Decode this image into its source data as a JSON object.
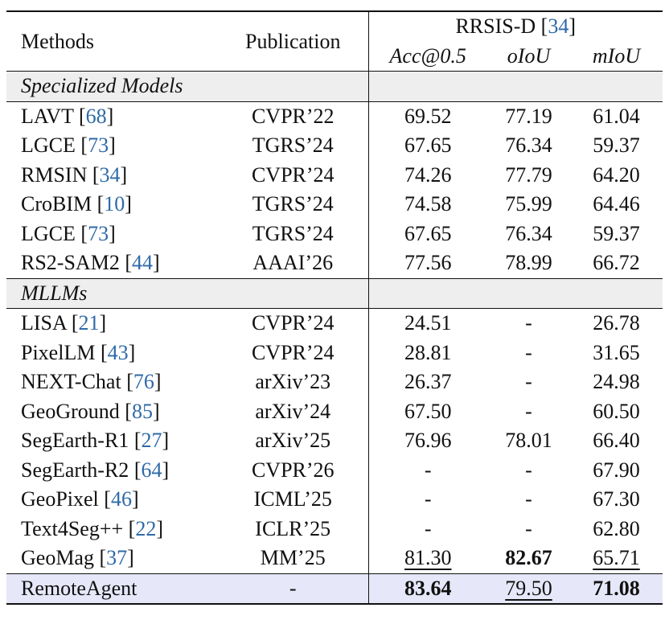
{
  "header": {
    "methods": "Methods",
    "publication": "Publication",
    "dataset": "RRSIS-D",
    "dataset_ref": "34",
    "metrics": [
      "Acc@0.5",
      "oIoU",
      "mIoU"
    ]
  },
  "groups": [
    {
      "name": "Specialized Models",
      "rows": [
        {
          "method": "LAVT",
          "ref": "68",
          "pub": "CVPR’22",
          "acc": "69.52",
          "oiou": "77.19",
          "miou": "61.04"
        },
        {
          "method": "LGCE",
          "ref": "73",
          "pub": "TGRS’24",
          "acc": "67.65",
          "oiou": "76.34",
          "miou": "59.37"
        },
        {
          "method": "RMSIN",
          "ref": "34",
          "pub": "CVPR’24",
          "acc": "74.26",
          "oiou": "77.79",
          "miou": "64.20"
        },
        {
          "method": "CroBIM",
          "ref": "10",
          "pub": "TGRS’24",
          "acc": "74.58",
          "oiou": "75.99",
          "miou": "64.46"
        },
        {
          "method": "LGCE",
          "ref": "73",
          "pub": "TGRS’24",
          "acc": "67.65",
          "oiou": "76.34",
          "miou": "59.37"
        },
        {
          "method": "RS2-SAM2",
          "ref": "44",
          "pub": "AAAI’26",
          "acc": "77.56",
          "oiou": "78.99",
          "miou": "66.72"
        }
      ]
    },
    {
      "name": "MLLMs",
      "rows": [
        {
          "method": "LISA",
          "ref": "21",
          "pub": "CVPR’24",
          "acc": "24.51",
          "oiou": "-",
          "miou": "26.78"
        },
        {
          "method": "PixelLM",
          "ref": "43",
          "pub": "CVPR’24",
          "acc": "28.81",
          "oiou": "-",
          "miou": "31.65"
        },
        {
          "method": "NEXT-Chat",
          "ref": "76",
          "pub": "arXiv’23",
          "acc": "26.37",
          "oiou": "-",
          "miou": "24.98"
        },
        {
          "method": "GeoGround",
          "ref": "85",
          "pub": "arXiv’24",
          "acc": "67.50",
          "oiou": "-",
          "miou": "60.50"
        },
        {
          "method": "SegEarth-R1",
          "ref": "27",
          "pub": "arXiv’25",
          "acc": "76.96",
          "oiou": "78.01",
          "miou": "66.40"
        },
        {
          "method": "SegEarth-R2",
          "ref": "64",
          "pub": "CVPR’26",
          "acc": "-",
          "oiou": "-",
          "miou": "67.90"
        },
        {
          "method": "GeoPixel",
          "ref": "46",
          "pub": "ICML’25",
          "acc": "-",
          "oiou": "-",
          "miou": "67.30"
        },
        {
          "method": "Text4Seg++",
          "ref": "22",
          "pub": "ICLR’25",
          "acc": "-",
          "oiou": "-",
          "miou": "62.80"
        },
        {
          "method": "GeoMag",
          "ref": "37",
          "pub": "MM’25",
          "acc": "81.30",
          "oiou": "82.67",
          "miou": "65.71"
        }
      ]
    }
  ],
  "ours": {
    "method": "RemoteAgent",
    "pub": "-",
    "acc": "83.64",
    "oiou": "79.50",
    "miou": "71.08"
  },
  "colors": {
    "ref_link": "#2f6aa8",
    "group_bg": "#eeeeee",
    "highlight_bg": "#e6e7f9"
  }
}
